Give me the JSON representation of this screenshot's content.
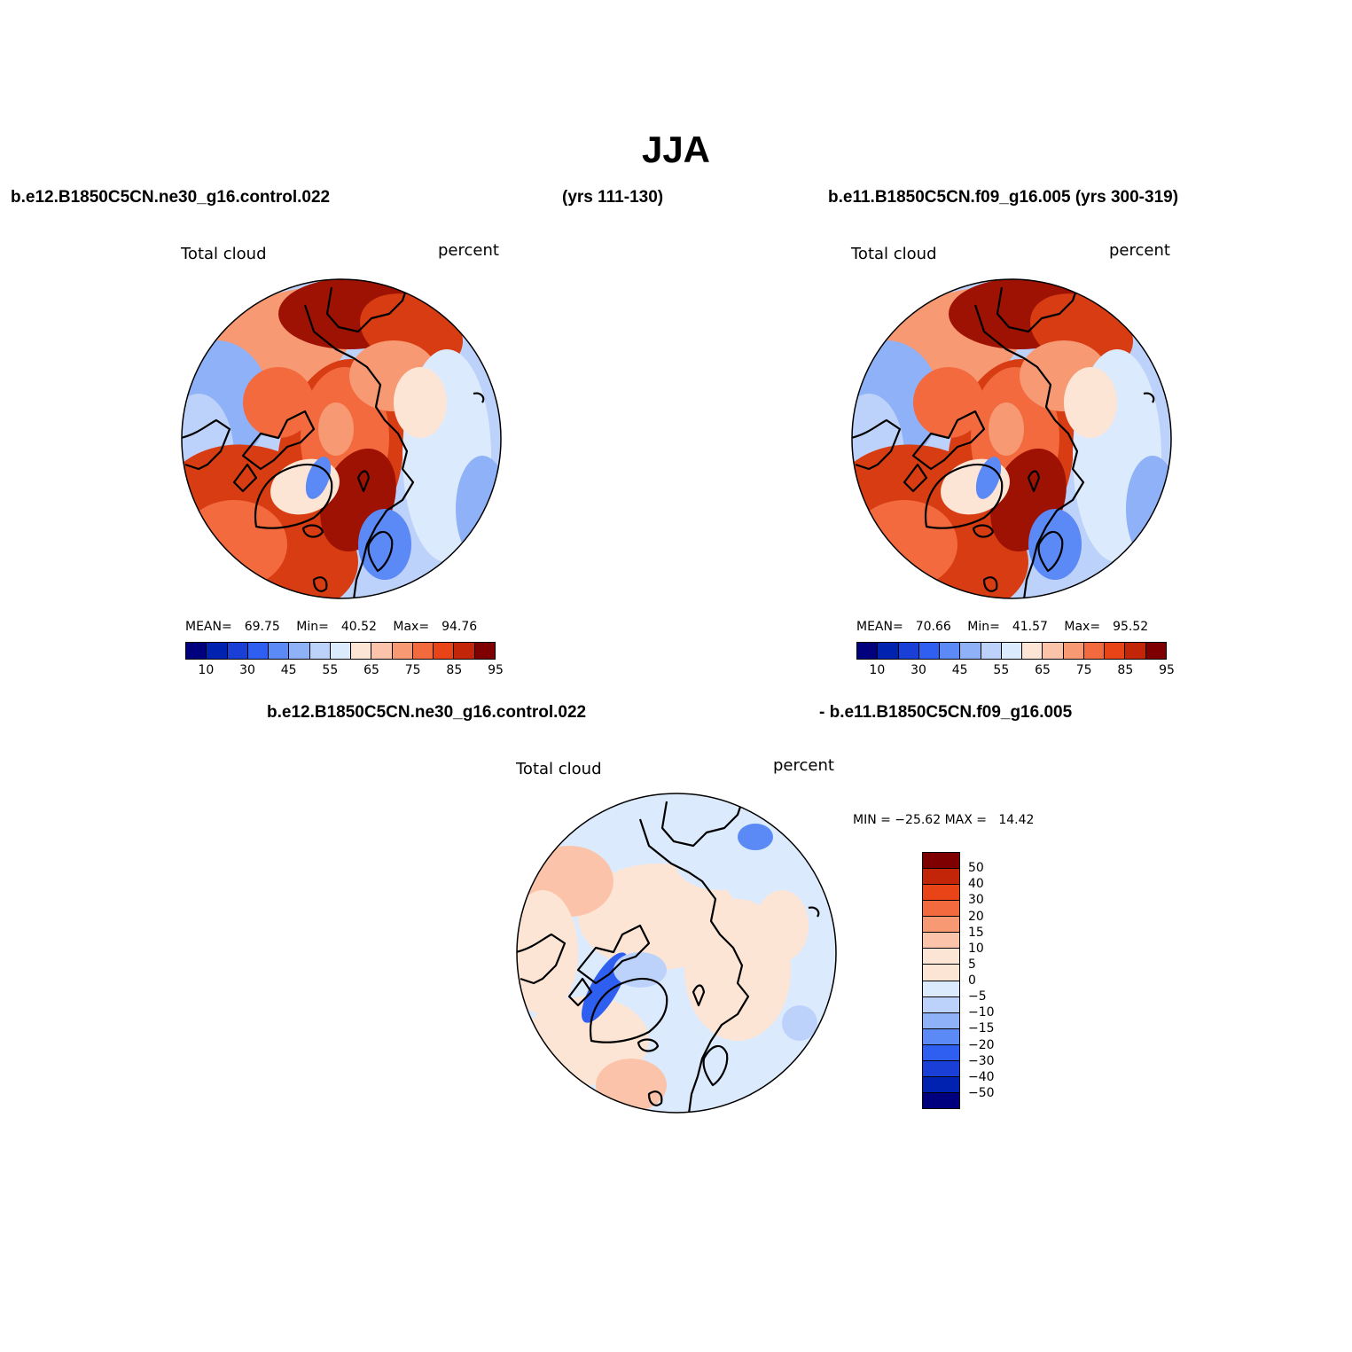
{
  "title": "JJA",
  "top_left": {
    "case": "b.e12.B1850C5CN.ne30_g16.control.022",
    "years": "(yrs 111-130)",
    "variable": "Total cloud",
    "units": "percent",
    "mean_label": "MEAN=",
    "mean": "69.75",
    "min_label": "Min=",
    "min": "40.52",
    "max_label": "Max=",
    "max": "94.76"
  },
  "top_right": {
    "case_years": "b.e11.B1850C5CN.f09_g16.005 (yrs 300-319)",
    "variable": "Total cloud",
    "units": "percent",
    "mean_label": "MEAN=",
    "mean": "70.66",
    "min_label": "Min=",
    "min": "41.57",
    "max_label": "Max=",
    "max": "95.52"
  },
  "bottom": {
    "case_a": "b.e12.B1850C5CN.ne30_g16.control.022",
    "case_b": "- b.e11.B1850C5CN.f09_g16.005",
    "variable": "Total cloud",
    "units": "percent",
    "minmax": "MIN = −25.62 MAX =   14.42"
  },
  "abs_colorbar": {
    "colors": [
      "#00007f",
      "#0022b0",
      "#1a3fd6",
      "#2e5ff0",
      "#5b89f5",
      "#8fb1f7",
      "#bcd2fa",
      "#dceafd",
      "#fde5d6",
      "#fbc4aa",
      "#f79a74",
      "#f26a3e",
      "#e84418",
      "#c22508",
      "#7f0000"
    ],
    "ticks": [
      "10",
      "30",
      "45",
      "55",
      "65",
      "75",
      "85",
      "95"
    ]
  },
  "diff_colorbar": {
    "colors": [
      "#7f0000",
      "#c22508",
      "#e84418",
      "#f26a3e",
      "#f79a74",
      "#fbc4aa",
      "#fde5d6",
      "#dceafd",
      "#bcd2fa",
      "#8fb1f7",
      "#5b89f5",
      "#2e5ff0",
      "#1a3fd6",
      "#0022b0",
      "#00007f"
    ],
    "ticks": [
      "50",
      "40",
      "30",
      "20",
      "15",
      "10",
      "5",
      "0",
      "−5",
      "−10",
      "−15",
      "−20",
      "−30",
      "−40",
      "−50"
    ]
  },
  "map_palette": {
    "deep_red": "#9e1204",
    "red": "#d83c12",
    "orange": "#f26a3e",
    "salmon": "#f79a74",
    "peach": "#fbc4aa",
    "cream": "#fde5d6",
    "pale_blue": "#dceafd",
    "light_blue": "#bcd2fa",
    "mid_blue": "#8fb1f7",
    "blue": "#5b89f5",
    "strong_blue": "#2e5ff0"
  }
}
